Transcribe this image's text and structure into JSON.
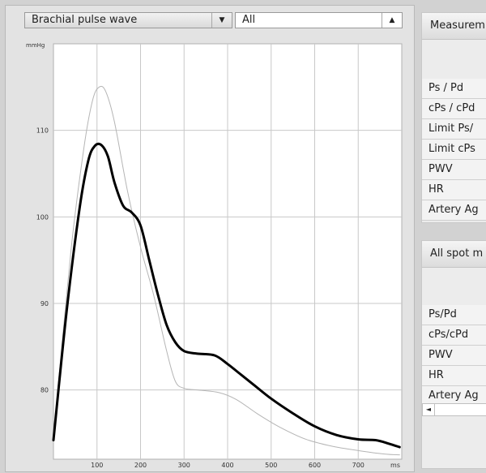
{
  "left_dropdown": {
    "value": "Brachial pulse wave",
    "arrow": "▼"
  },
  "right_dropdown": {
    "value": "All",
    "arrow": "▲"
  },
  "chart_data": {
    "type": "line",
    "ylabel": "mmHg",
    "xunit": "ms",
    "xlim": [
      0,
      800
    ],
    "ylim": [
      72,
      120
    ],
    "xticks": [
      100,
      200,
      300,
      400,
      500,
      600,
      700
    ],
    "yticks": [
      80,
      90,
      100,
      110
    ],
    "grid": true,
    "series": [
      {
        "color": "#000000",
        "x": [
          0,
          30,
          60,
          80,
          95,
          110,
          125,
          140,
          160,
          180,
          200,
          220,
          240,
          260,
          280,
          300,
          330,
          370,
          400,
          430,
          460,
          500,
          550,
          600,
          650,
          700,
          740,
          770,
          795
        ],
        "y": [
          74.2,
          89,
          101,
          106.5,
          108.2,
          108.3,
          107,
          104,
          101.3,
          100.5,
          99,
          95,
          91,
          87.5,
          85.5,
          84.5,
          84.2,
          84,
          83,
          81.8,
          80.6,
          79,
          77.3,
          75.8,
          74.8,
          74.3,
          74.2,
          73.8,
          73.4
        ],
        "width": 3
      },
      {
        "color": "#b5b5b5",
        "x": [
          0,
          40,
          70,
          90,
          105,
          120,
          140,
          170,
          200,
          230,
          260,
          280,
          300,
          330,
          380,
          420,
          470,
          520,
          580,
          640,
          700,
          760,
          795
        ],
        "y": [
          74.5,
          96,
          108,
          113.5,
          115,
          114.5,
          111,
          103,
          96.5,
          91,
          84.5,
          81,
          80.2,
          80,
          79.7,
          78.9,
          77.2,
          75.7,
          74.3,
          73.5,
          73,
          72.6,
          72.5
        ],
        "width": 1
      }
    ]
  },
  "measurements_panel": {
    "title": "Measurem",
    "rows": [
      "Ps / Pd",
      "cPs / cPd",
      "Limit Ps/",
      "Limit cPs",
      "PWV",
      "HR",
      "Artery Ag"
    ]
  },
  "spot_panel": {
    "title": "All spot m",
    "rows": [
      "Ps/Pd",
      "cPs/cPd",
      "PWV",
      "HR",
      "Artery Ag"
    ],
    "scroll_arrow": "◄"
  }
}
